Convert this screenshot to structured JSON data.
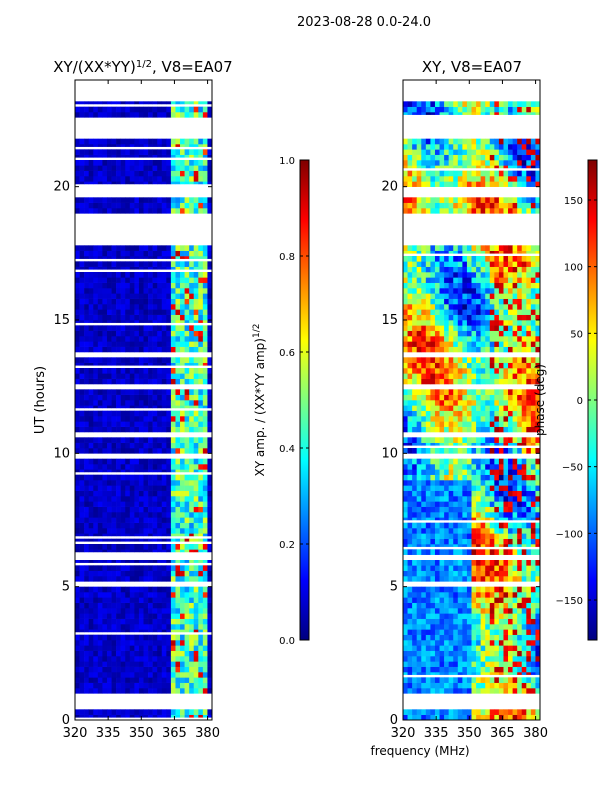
{
  "figure": {
    "suptitle": "2023-08-28 0.0-24.0",
    "shared_xlabel": "frequency (MHz)"
  },
  "colors": {
    "jet": [
      "#00007f",
      "#0000ff",
      "#007fff",
      "#00ffff",
      "#7fff7f",
      "#ffff00",
      "#ff7f00",
      "#ff0000",
      "#7f0000"
    ],
    "gap": "#ffffff",
    "axis": "#000000"
  },
  "chart_data": [
    {
      "type": "heatmap",
      "name": "amplitude-ratio",
      "title": "XY/(XX*YY)",
      "title_superscript": "1/2",
      "title_suffix": ", V8=EA07",
      "xlabel": "",
      "ylabel": "UT (hours)",
      "xlim": [
        320,
        382
      ],
      "ylim": [
        0,
        24
      ],
      "xticks": [
        320,
        335,
        350,
        365,
        380
      ],
      "yticks": [
        0,
        5,
        10,
        15,
        20
      ],
      "colorbar": {
        "label": "XY amp. / (XX*YY amp)",
        "label_superscript": "1/2",
        "range": [
          0.0,
          1.0
        ],
        "ticks": [
          "0.0",
          "0.2",
          "0.4",
          "0.6",
          "0.8",
          "1.0"
        ],
        "tick_values": [
          0.0,
          0.2,
          0.4,
          0.6,
          0.8,
          1.0
        ]
      },
      "bright_channels_mhz": [
        [
          364,
          366
        ],
        [
          369,
          371
        ],
        [
          373,
          375
        ],
        [
          377,
          379
        ]
      ],
      "typical_value_background": 0.05,
      "typical_value_bright_channels": 0.45
    },
    {
      "type": "heatmap",
      "name": "phase",
      "title": "XY, V8=EA07",
      "xlabel": "frequency (MHz)",
      "ylabel": "",
      "xlim": [
        320,
        382
      ],
      "ylim": [
        0,
        24
      ],
      "xticks": [
        320,
        335,
        350,
        365,
        380
      ],
      "yticks": [
        0,
        5,
        10,
        15,
        20
      ],
      "colorbar": {
        "label": "phase (deg)",
        "range": [
          -180,
          180
        ],
        "ticks": [
          "−150",
          "−100",
          "−50",
          "0",
          "50",
          "100",
          "150"
        ],
        "tick_values": [
          -150,
          -100,
          -50,
          0,
          50,
          100,
          150
        ]
      }
    }
  ],
  "gaps_hours": [
    [
      0.5,
      0.9
    ],
    [
      5.0,
      5.3
    ],
    [
      5.9,
      6.2
    ],
    [
      9.8,
      10.0
    ],
    [
      10.6,
      10.8
    ],
    [
      12.4,
      12.6
    ],
    [
      13.6,
      13.8
    ],
    [
      17.9,
      19.0
    ],
    [
      19.6,
      20.1
    ],
    [
      21.8,
      22.6
    ],
    [
      23.3,
      24.0
    ]
  ]
}
